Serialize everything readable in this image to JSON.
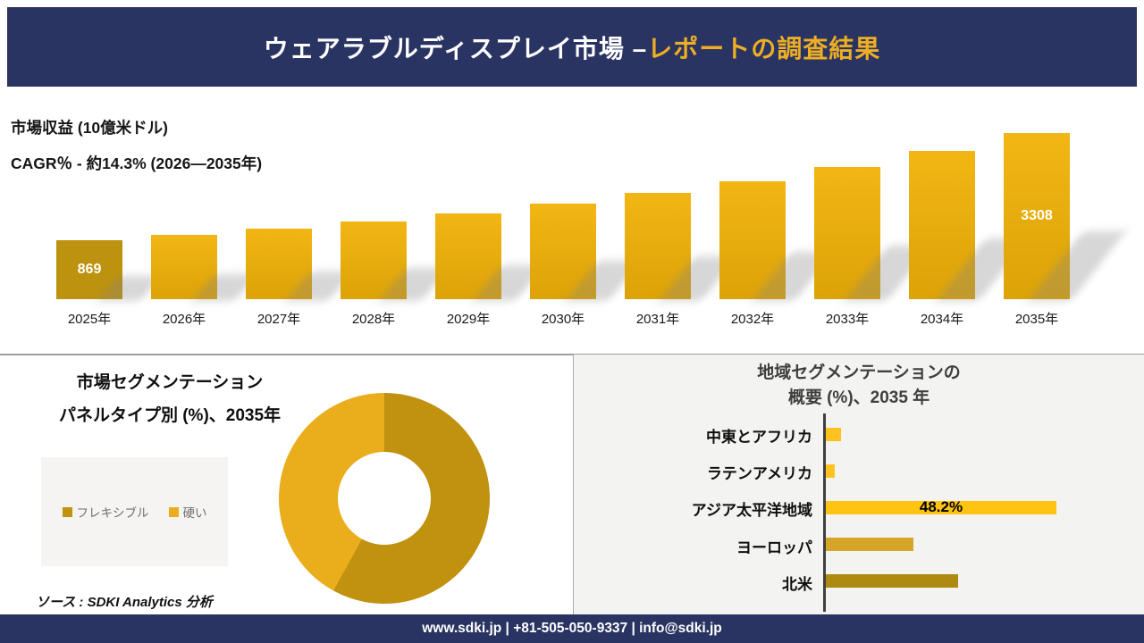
{
  "header": {
    "title_white": "ウェアラブルディスプレイ市場 –",
    "title_gold": "レポートの調査結果"
  },
  "palette": {
    "navy": "#2A3462",
    "gold_accent": "#EDAE24",
    "first_bar": "#BD920E",
    "bar_top": "#F2B614",
    "bar_bottom": "#DCA308"
  },
  "revenue_section": {
    "metric_label": "市場収益 (10億米ドル)",
    "cagr_label": "CAGR％ - 約14.3% (2026―2035年)"
  },
  "segmentation_section": {
    "title_line1": "市場セグメンテーション",
    "title_line2": "パネルタイプ別 (%)、2035年",
    "source_note": "ソース : SDKI Analytics 分析"
  },
  "regional_section": {
    "title_line1": "地域セグメンテーションの",
    "title_line2": "概要 (%)、2035 年"
  },
  "footer": {
    "contact_line": "www.sdki.jp | +81-505-050-9337 | info@sdki.jp"
  },
  "chart_data": [
    {
      "id": "revenue-bar-chart",
      "type": "bar",
      "title": "市場収益 (10億米ドル)",
      "subtitle": "CAGR％ - 約14.3% (2026―2035年)",
      "categories": [
        "2025年",
        "2026年",
        "2027年",
        "2028年",
        "2029年",
        "2030年",
        "2031年",
        "2032年",
        "2033年",
        "2034年",
        "2035年"
      ],
      "values": [
        869,
        993,
        1135,
        1298,
        1483,
        1695,
        1938,
        2215,
        2532,
        2894,
        3308
      ],
      "value_labels": [
        "869",
        "",
        "",
        "",
        "",
        "",
        "",
        "",
        "",
        "",
        "3308"
      ],
      "ylabel": "市場収益 (10億米ドル)",
      "grid": false,
      "legend": false,
      "note_first_last_labeled_only": true
    },
    {
      "id": "panel-type-donut",
      "type": "pie",
      "title": "市場セグメンテーション パネルタイプ別 (%)、2035年",
      "labels": [
        "フレキシブル",
        "硬い"
      ],
      "values": [
        58,
        42
      ],
      "colors": [
        "#C19110",
        "#EAAD1B"
      ],
      "donut": true,
      "legend_position": "left"
    },
    {
      "id": "regional-hbar-chart",
      "type": "bar",
      "orientation": "horizontal",
      "title": "地域セグメンテーションの概要 (%)、2035 年",
      "categories": [
        "中東とアフリカ",
        "ラテンアメリカ",
        "アジア太平洋地域",
        "ヨーロッパ",
        "北米"
      ],
      "values": [
        3.2,
        1.9,
        48.2,
        18.3,
        27.6
      ],
      "value_labels": [
        "",
        "",
        "48.2%",
        "",
        ""
      ],
      "colors": [
        "#FFC21E",
        "#FFC21E",
        "#FFC312",
        "#D6A528",
        "#AE8A10"
      ],
      "xlim": [
        0,
        50
      ],
      "grid": false
    }
  ]
}
